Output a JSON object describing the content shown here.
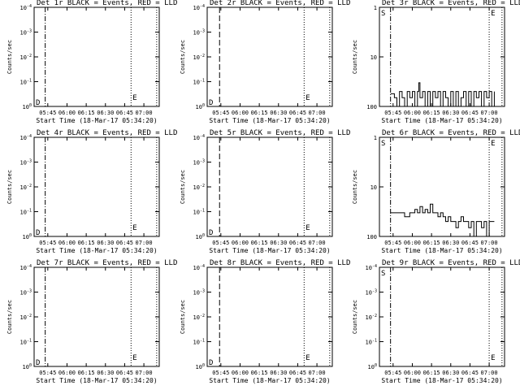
{
  "figure": {
    "x_label": "Start Time (18-Mar-17 05:34:20)",
    "y_label": "Counts/sec",
    "x_ticks": [
      "05:45",
      "06:00",
      "06:15",
      "06:30",
      "06:45",
      "07:00"
    ],
    "edge_labels": {
      "start": "S",
      "dash": "D",
      "end": "E"
    },
    "colors": {
      "events": "#000000",
      "lld": "#ff0000",
      "axes": "#000000",
      "background": "#ffffff"
    }
  },
  "chart_data": [
    {
      "type": "line",
      "title": "Det 1r BLACK = Events, RED = LLD",
      "x_range": [
        "05:34:20",
        "07:12:00"
      ],
      "y_scale": "log",
      "y_ticks": [
        "10^0",
        "10^-1",
        "10^-2",
        "10^-3",
        "10^-4"
      ],
      "markers": {
        "dashdot": "05:43:00",
        "dotted": [
          "06:50:00",
          "07:10:00"
        ]
      },
      "series": [],
      "edges": [
        "D",
        "E"
      ]
    },
    {
      "type": "line",
      "title": "Det 2r BLACK = Events, RED = LLD",
      "x_range": [
        "05:34:20",
        "07:12:00"
      ],
      "y_scale": "log",
      "y_ticks": [
        "10^0",
        "10^-1",
        "10^-2",
        "10^-3",
        "10^-4"
      ],
      "markers": {
        "dashed": "05:44:00",
        "dotted": [
          "06:50:00",
          "07:10:00"
        ]
      },
      "series": [],
      "edges": [
        "D",
        "E"
      ]
    },
    {
      "type": "line",
      "title": "Det 3r BLACK = Events, RED = LLD",
      "x_range": [
        "05:34:20",
        "07:12:00"
      ],
      "y_scale": "log",
      "y_ticks": [
        "100",
        "10",
        "1"
      ],
      "markers": {
        "dashdot": "05:43:00",
        "dotted": [
          "07:00:00",
          "07:10:00"
        ]
      },
      "series": [
        {
          "x": [
            "05:43",
            "05:46",
            "05:48",
            "05:50",
            "05:52",
            "05:54",
            "05:56",
            "05:58",
            "06:00",
            "06:02",
            "06:04",
            "06:05",
            "06:06",
            "06:08",
            "06:10",
            "06:12",
            "06:14",
            "06:16",
            "06:18",
            "06:20",
            "06:22",
            "06:24",
            "06:26",
            "06:28",
            "06:30",
            "06:32",
            "06:34",
            "06:36",
            "06:38",
            "06:40",
            "06:42",
            "06:44",
            "06:46",
            "06:48",
            "06:50",
            "06:52",
            "06:54",
            "06:56",
            "06:58",
            "07:00",
            "07:02",
            "07:04"
          ],
          "y": [
            1.8,
            1.5,
            1,
            2,
            1.5,
            1,
            2,
            1.5,
            2,
            1,
            2,
            3,
            1.5,
            2,
            1,
            2,
            1,
            2,
            1.5,
            2,
            1,
            2,
            1.5,
            1,
            2,
            1,
            2,
            1,
            1.5,
            2,
            1,
            2,
            1,
            2,
            1.5,
            2,
            1,
            2,
            1.5,
            2,
            1,
            2
          ]
        }
      ],
      "edges": [
        "S",
        "E"
      ]
    },
    {
      "type": "line",
      "title": "Det 4r BLACK = Events, RED = LLD",
      "x_range": [
        "05:34:20",
        "07:12:00"
      ],
      "y_scale": "log",
      "y_ticks": [
        "10^0",
        "10^-1",
        "10^-2",
        "10^-3",
        "10^-4"
      ],
      "markers": {
        "dashdot": "05:43:00",
        "dotted": [
          "06:50:00",
          "07:10:00"
        ]
      },
      "series": [],
      "edges": [
        "D",
        "E"
      ]
    },
    {
      "type": "line",
      "title": "Det 5r BLACK = Events, RED = LLD",
      "x_range": [
        "05:34:20",
        "07:12:00"
      ],
      "y_scale": "log",
      "y_ticks": [
        "10^0",
        "10^-1",
        "10^-2",
        "10^-3",
        "10^-4"
      ],
      "markers": {
        "dashed": "05:44:00",
        "dotted": [
          "06:50:00",
          "07:10:00"
        ]
      },
      "series": [],
      "edges": [
        "D",
        "E"
      ]
    },
    {
      "type": "line",
      "title": "Det 6r BLACK = Events, RED = LLD",
      "x_range": [
        "05:34:20",
        "07:12:00"
      ],
      "y_scale": "log",
      "y_ticks": [
        "100",
        "10",
        "1"
      ],
      "markers": {
        "dashdot": "05:43:00",
        "dotted": [
          "07:00:00",
          "07:10:00"
        ]
      },
      "series": [
        {
          "x": [
            "05:43",
            "05:46",
            "05:50",
            "05:54",
            "05:58",
            "06:00",
            "06:02",
            "06:04",
            "06:06",
            "06:08",
            "06:10",
            "06:12",
            "06:14",
            "06:16",
            "06:18",
            "06:20",
            "06:22",
            "06:24",
            "06:26",
            "06:28",
            "06:30",
            "06:32",
            "06:34",
            "06:36",
            "06:38",
            "06:40",
            "06:42",
            "06:44",
            "06:46",
            "06:48",
            "06:50",
            "06:52",
            "06:54",
            "06:56",
            "06:58",
            "07:00",
            "07:02",
            "07:04"
          ],
          "y": [
            3,
            3,
            3,
            2.5,
            3,
            3,
            3.5,
            3,
            4,
            3,
            3.5,
            3,
            4.5,
            3,
            3,
            2.5,
            3,
            2.5,
            2,
            2.5,
            2,
            2,
            1.5,
            2,
            2.5,
            2,
            2,
            1.5,
            2,
            1,
            2,
            2,
            1.5,
            2,
            1,
            2,
            2,
            2
          ]
        }
      ],
      "edges": [
        "S",
        "E"
      ]
    },
    {
      "type": "line",
      "title": "Det 7r BLACK = Events, RED = LLD",
      "x_range": [
        "05:34:20",
        "07:12:00"
      ],
      "y_scale": "log",
      "y_ticks": [
        "10^0",
        "10^-1",
        "10^-2",
        "10^-3",
        "10^-4"
      ],
      "markers": {
        "dashdot": "05:43:00",
        "dotted": [
          "06:50:00",
          "07:10:00"
        ]
      },
      "series": [],
      "edges": [
        "D",
        "E"
      ]
    },
    {
      "type": "line",
      "title": "Det 8r BLACK = Events, RED = LLD",
      "x_range": [
        "05:34:20",
        "07:12:00"
      ],
      "y_scale": "log",
      "y_ticks": [
        "10^0",
        "10^-1",
        "10^-2",
        "10^-3",
        "10^-4"
      ],
      "markers": {
        "dashed": "05:44:00",
        "dotted": [
          "06:50:00",
          "07:10:00"
        ]
      },
      "series": [],
      "edges": [
        "D",
        "E"
      ]
    },
    {
      "type": "line",
      "title": "Det 9r BLACK = Events, RED = LLD",
      "x_range": [
        "05:34:20",
        "07:12:00"
      ],
      "y_scale": "log",
      "y_ticks": [
        "10^0",
        "10^-1",
        "10^-2",
        "10^-3",
        "10^-4"
      ],
      "markers": {
        "dashdot": "05:43:00",
        "dotted": [
          "07:00:00",
          "07:10:00"
        ]
      },
      "series": [],
      "edges": [
        "S",
        "E"
      ]
    }
  ]
}
